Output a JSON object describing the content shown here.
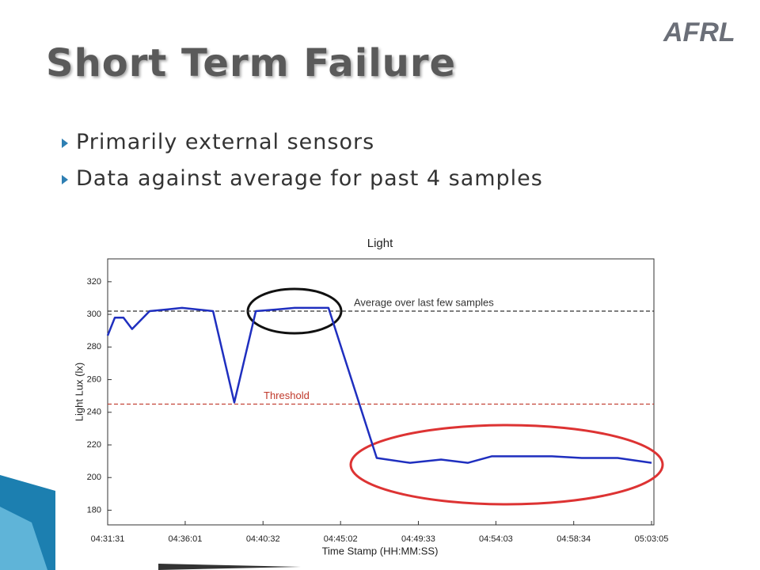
{
  "slide": {
    "title": "Short Term Failure",
    "logo": "AFRL",
    "bullets": [
      "Primarily external sensors",
      "Data against average for past 4 samples"
    ]
  },
  "chart_data": {
    "type": "line",
    "title": "Light",
    "x_label": "Time Stamp (HH:MM:SS)",
    "y_label": "Light Lux (lx)",
    "x": [
      "04:31:31",
      "04:31:56",
      "04:32:26",
      "04:32:56",
      "04:33:57",
      "04:34:58",
      "04:35:50",
      "04:37:38",
      "04:38:52",
      "04:40:07",
      "04:41:21",
      "04:42:22",
      "04:44:20",
      "04:47:08",
      "04:49:04",
      "04:50:52",
      "04:52:25",
      "04:53:48",
      "04:57:18",
      "04:59:02",
      "05:01:07",
      "05:03:05"
    ],
    "values": [
      287,
      298,
      298,
      291,
      302,
      303,
      304,
      302,
      246,
      302,
      303,
      304,
      304,
      212,
      209,
      211,
      209,
      213,
      213,
      212,
      212,
      209
    ],
    "color": "#1f2fbf",
    "xlim": [
      "04:31:31",
      "05:03:05"
    ],
    "xticks": [
      "04:31:31",
      "04:36:01",
      "04:40:32",
      "04:45:02",
      "04:49:33",
      "04:54:03",
      "04:58:34",
      "05:03:05"
    ],
    "ylim": [
      171,
      334
    ],
    "yticks": [
      180,
      200,
      220,
      240,
      260,
      280,
      300,
      320
    ],
    "reference_lines": [
      {
        "value": 302,
        "label": "Average over last few samples",
        "color": "#333333"
      },
      {
        "value": 245,
        "label": "Threshold",
        "color": "#c0392b"
      }
    ]
  }
}
